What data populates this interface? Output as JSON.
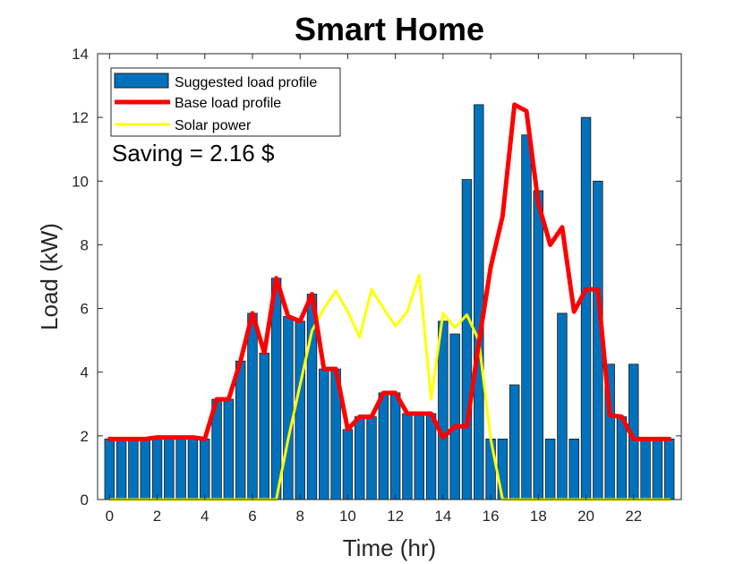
{
  "chart_data": {
    "type": "bar",
    "title": "Smart Home",
    "xlabel": "Time (hr)",
    "ylabel": "Load (kW)",
    "xlim": [
      -0.5,
      24
    ],
    "ylim": [
      0,
      14
    ],
    "xticks": [
      0,
      2,
      4,
      6,
      8,
      10,
      12,
      14,
      16,
      18,
      20,
      22
    ],
    "yticks": [
      0,
      2,
      4,
      6,
      8,
      10,
      12,
      14
    ],
    "grid": false,
    "legend_position": "top-left",
    "annotation": "Saving = 2.16 $",
    "colors": {
      "bars": "#0072BD",
      "base": "#FF0000",
      "solar": "#FFFF00"
    },
    "x": [
      0,
      0.5,
      1,
      1.5,
      2,
      2.5,
      3,
      3.5,
      4,
      4.5,
      5,
      5.5,
      6,
      6.5,
      7,
      7.5,
      8,
      8.5,
      9,
      9.5,
      10,
      10.5,
      11,
      11.5,
      12,
      12.5,
      13,
      13.5,
      14,
      14.5,
      15,
      15.5,
      16,
      16.5,
      17,
      17.5,
      18,
      18.5,
      19,
      19.5,
      20,
      20.5,
      21,
      21.5,
      22,
      22.5,
      23,
      23.5
    ],
    "series": [
      {
        "name": "Suggested load profile",
        "kind": "bar",
        "values": [
          1.9,
          1.9,
          1.9,
          1.9,
          1.95,
          1.95,
          1.95,
          1.95,
          1.9,
          3.15,
          3.15,
          4.35,
          5.85,
          4.6,
          6.95,
          5.75,
          5.6,
          6.45,
          4.1,
          4.1,
          2.2,
          2.6,
          2.6,
          3.35,
          3.35,
          2.7,
          2.7,
          2.7,
          5.6,
          5.2,
          10.05,
          12.4,
          1.9,
          1.9,
          3.6,
          11.45,
          9.7,
          1.9,
          5.85,
          1.9,
          12.0,
          10.0,
          4.25,
          2.6,
          4.25,
          1.9,
          1.9,
          1.9
        ]
      },
      {
        "name": "Base load profile",
        "kind": "line",
        "values": [
          1.9,
          1.9,
          1.9,
          1.9,
          1.95,
          1.95,
          1.95,
          1.95,
          1.9,
          3.15,
          3.15,
          4.35,
          5.85,
          4.6,
          6.95,
          5.75,
          5.6,
          6.45,
          4.1,
          4.1,
          2.2,
          2.6,
          2.6,
          3.35,
          3.35,
          2.7,
          2.7,
          2.7,
          1.95,
          2.3,
          2.3,
          4.9,
          7.3,
          8.9,
          12.4,
          12.2,
          9.3,
          8.0,
          8.55,
          5.9,
          6.6,
          6.6,
          2.65,
          2.6,
          1.9,
          1.9,
          1.9,
          1.9
        ]
      },
      {
        "name": "Solar power",
        "kind": "line",
        "values": [
          0,
          0,
          0,
          0,
          0,
          0,
          0,
          0,
          0,
          0,
          0,
          0,
          0,
          0,
          0,
          1.9,
          3.6,
          5.3,
          6.0,
          6.55,
          5.9,
          5.1,
          6.6,
          6.0,
          5.45,
          5.9,
          7.05,
          3.15,
          5.85,
          5.4,
          5.8,
          5.0,
          1.9,
          0,
          0,
          0,
          0,
          0,
          0,
          0,
          0,
          0,
          0,
          0,
          0,
          0,
          0,
          0
        ]
      }
    ]
  }
}
